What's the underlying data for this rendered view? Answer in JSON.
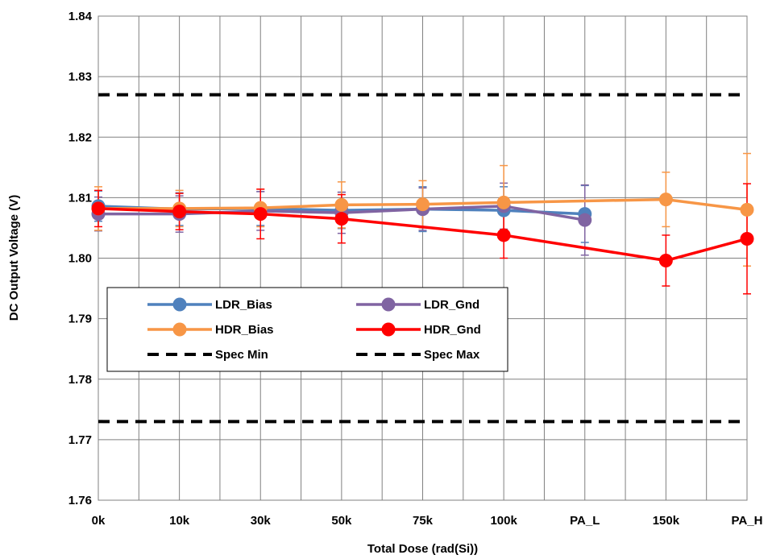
{
  "chart_data": {
    "type": "line",
    "title": "",
    "xlabel": "Total Dose (rad(Si))",
    "ylabel": "DC Output Voltage (V)",
    "categories": [
      "0k",
      "10k",
      "30k",
      "50k",
      "75k",
      "100k",
      "PA_L",
      "150k",
      "PA_H"
    ],
    "yticks": [
      "1.76",
      "1.77",
      "1.78",
      "1.79",
      "1.80",
      "1.81",
      "1.82",
      "1.83",
      "1.84"
    ],
    "ylim": [
      1.76,
      1.84
    ],
    "grid": true,
    "legend_position": "lower-left inside plot",
    "series": [
      {
        "name": "LDR_Bias",
        "color": "#4f81bd",
        "style": "solid-marker",
        "values": [
          1.8086,
          1.8081,
          1.8082,
          1.8079,
          1.8081,
          1.8079,
          1.8073,
          null,
          null
        ],
        "error": [
          0.0025,
          0.0027,
          0.0028,
          0.003,
          0.0037,
          0.0039,
          0.0047,
          null,
          null
        ]
      },
      {
        "name": "LDR_Gnd",
        "color": "#8064a2",
        "style": "solid-marker",
        "values": [
          1.8073,
          1.8073,
          1.8078,
          1.8075,
          1.8081,
          1.8086,
          1.8063,
          null,
          null
        ],
        "error": [
          0.0028,
          0.003,
          0.0032,
          0.0034,
          0.0035,
          0.0038,
          0.0058,
          null,
          null
        ]
      },
      {
        "name": "HDR_Bias",
        "color": "#f79646",
        "style": "solid-marker",
        "values": [
          1.8082,
          1.8082,
          1.8083,
          1.8088,
          1.8089,
          1.8092,
          null,
          1.8097,
          1.808
        ],
        "error": [
          0.0036,
          0.003,
          0.0031,
          0.0038,
          0.0039,
          0.0061,
          null,
          0.0045,
          0.0093
        ]
      },
      {
        "name": "HDR_Gnd",
        "color": "#ff0000",
        "style": "solid-marker",
        "values": [
          1.8082,
          1.8077,
          1.8073,
          1.8065,
          null,
          1.8038,
          null,
          1.7996,
          1.8032
        ],
        "error": [
          0.003,
          0.003,
          0.0041,
          0.004,
          null,
          0.0038,
          null,
          0.0042,
          0.0091
        ]
      },
      {
        "name": "Spec Min",
        "color": "#000000",
        "style": "dashed",
        "constant": 1.773
      },
      {
        "name": "Spec Max",
        "color": "#000000",
        "style": "dashed",
        "constant": 1.827
      }
    ]
  }
}
